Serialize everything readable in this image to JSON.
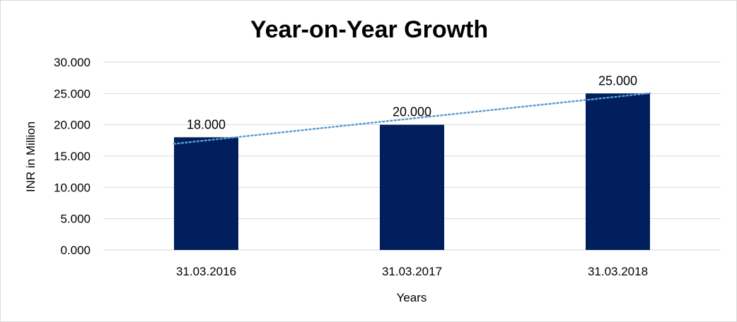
{
  "chart_data": {
    "type": "bar",
    "title": "Year-on-Year Growth",
    "xlabel": "Years",
    "ylabel": "INR in Million",
    "categories": [
      "31.03.2016",
      "31.03.2017",
      "31.03.2018"
    ],
    "values": [
      18,
      20,
      25
    ],
    "data_labels": [
      "18.000",
      "20.000",
      "25.000"
    ],
    "ylim": [
      0,
      30
    ],
    "yticks": [
      0,
      5,
      10,
      15,
      20,
      25,
      30
    ],
    "ytick_labels": [
      "0.000",
      "5.000",
      "10.000",
      "15.000",
      "20.000",
      "25.000",
      "30.000"
    ],
    "grid": true,
    "legend": "none",
    "trendline": {
      "type": "linear",
      "style": "dotted"
    },
    "colors": {
      "bar": "#001f5c",
      "trendline": "#5b9bd5",
      "grid": "#d9d9d9"
    }
  }
}
